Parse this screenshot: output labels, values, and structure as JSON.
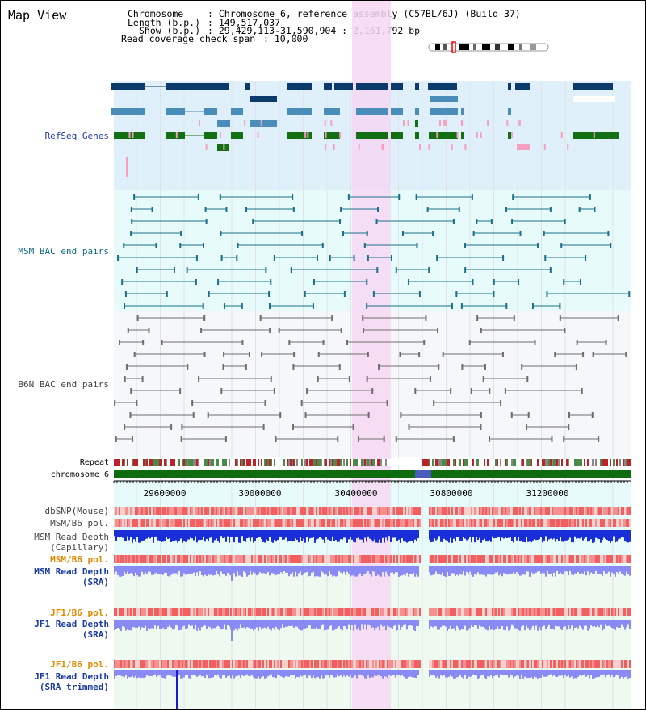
{
  "page": {
    "title": "Map View"
  },
  "info": {
    "chromosome_key": "Chromosome",
    "chromosome_val": ": Chromosome 6, reference assembly (C57BL/6J) (Build 37)",
    "length_key": "Length (b.p.)",
    "length_val": ": 149,517,037",
    "show_key": "Show (b.p.)",
    "show_val": ": 29,429,113-31,590,904 : 2,161,792 bp",
    "coverage_key": "Read coverage check span",
    "coverage_val": ": 10,000"
  },
  "tracks": {
    "refseq_label": "RefSeq Genes",
    "msm_bac_label": "MSM BAC end pairs",
    "b6n_bac_label": "B6N BAC end pairs",
    "repeat_label": "Repeat",
    "chromosome_label": "chromosome 6",
    "dbsnp_label": "dbSNP(Mouse)",
    "msm_b6_pol_label": "MSM/B6 pol.",
    "msm_read_depth_cap_label_1": "MSM Read Depth",
    "msm_read_depth_cap_label_2": "(Capillary)",
    "msm_b6_pol_sra_label": "MSM/B6 pol.",
    "msm_read_depth_sra_label_1": "MSM Read Depth",
    "msm_read_depth_sra_label_2": "(SRA)",
    "jf1_b6_pol_label": "JF1/B6 pol.",
    "jf1_read_depth_label_1": "JF1 Read Depth",
    "jf1_read_depth_label_2": "(SRA)",
    "jf1_b6_pol_trim_label": "JF1/B6 pol.",
    "jf1_read_depth_trim_label_1": "JF1 Read Depth",
    "jf1_read_depth_trim_label_2": "(SRA trimmed)"
  },
  "axis": {
    "ticks": [
      "29600000",
      "30000000",
      "30400000",
      "30800000",
      "31200000"
    ]
  },
  "colors": {
    "refseq_bg": "#dff0fa",
    "bac_bg": "#e8fbfb",
    "b6n_bg": "#f6f7f9",
    "highlight": "#f6d8f3",
    "navy": "#0c3a6b",
    "steel": "#4a8db8",
    "green": "#127012",
    "pink": "#f5a0c0",
    "chromosome_green": "#0e6b0e",
    "depth_blue": "#1a2ed8",
    "depth_light": "#8a8af5",
    "pol_red": "#f06060",
    "pol_light": "#fbd0cc"
  }
}
